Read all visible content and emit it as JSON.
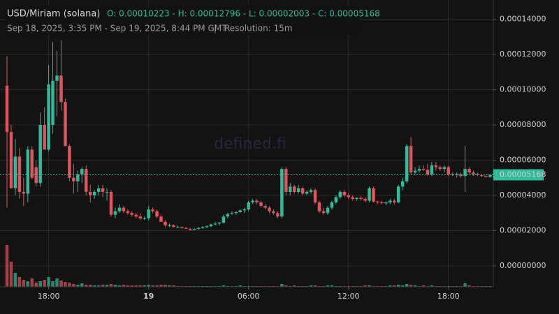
{
  "chart_data": {
    "type": "candlestick",
    "title": "USD/Miriam (solana)",
    "ohlc_text": "O: 0.00010223 - H: 0.00012796 - L: 0.00002003 - C: 0.00005168",
    "subtitle": "Sep 18, 2025, 3:35 PM - Sep 19, 2025, 8:44 PM GMT",
    "resolution": "Resolution: 15m",
    "watermark": "defined.fi",
    "up_color": "#2ebd9a",
    "down_color": "#e5525b",
    "grid": true,
    "xlim": [
      -1.68,
      116.78
    ],
    "xticks": [
      {
        "value": 10,
        "label": "18:00"
      },
      {
        "value": 34,
        "label": "19"
      },
      {
        "value": 58,
        "label": "06:00"
      },
      {
        "value": 82,
        "label": "12:00"
      },
      {
        "value": 106,
        "label": "18:00"
      }
    ],
    "ylim": [
      -1.188e-05,
      0.00015089
    ],
    "yticks": [
      {
        "value": 0.00014,
        "label": "0.00014000"
      },
      {
        "value": 0.00012,
        "label": "0.00012000"
      },
      {
        "value": 0.0001,
        "label": "0.00010000"
      },
      {
        "value": 8e-05,
        "label": "0.00008000"
      },
      {
        "value": 6e-05,
        "label": "0.00006000"
      },
      {
        "value": 4e-05,
        "label": "0.00004000"
      },
      {
        "value": 2e-05,
        "label": "0.00002000"
      },
      {
        "value": 0,
        "label": "0.00000000"
      }
    ],
    "open": [
      0.00010223,
      7.6e-05,
      4.4e-05,
      6.2e-05,
      4.2e-05,
      4.1e-05,
      6.6e-05,
      5.6e-05,
      4.7e-05,
      8e-05,
      6.6e-05,
      8e-05,
      0.000105,
      0.000108,
      9.3e-05,
      6.8e-05,
      5e-05,
      4.8e-05,
      5.2e-05,
      5.5e-05,
      4.2e-05,
      4e-05,
      4.2e-05,
      4.4e-05,
      4.2e-05,
      4.2e-05,
      2.9e-05,
      3.1e-05,
      3.3e-05,
      3.1e-05,
      3e-05,
      2.9e-05,
      2.8e-05,
      2.7e-05,
      2.7e-05,
      3.2e-05,
      3.1e-05,
      2.8e-05,
      2.5e-05,
      2.3e-05,
      2.3e-05,
      2.2e-05,
      2.2e-05,
      2.15e-05,
      2.1e-05,
      2.05e-05,
      2.1e-05,
      2.15e-05,
      2.2e-05,
      2.25e-05,
      2.35e-05,
      2.4e-05,
      2.45e-05,
      2.8e-05,
      2.95e-05,
      3e-05,
      3.05e-05,
      3.15e-05,
      3.2e-05,
      3.6e-05,
      3.7e-05,
      3.6e-05,
      3.4e-05,
      3.3e-05,
      3.1e-05,
      3e-05,
      2.8e-05,
      5.5e-05,
      4.2e-05,
      4.5e-05,
      4.2e-05,
      4.4e-05,
      4.1e-05,
      4.2e-05,
      4.3e-05,
      3.6e-05,
      3.1e-05,
      3e-05,
      3.3e-05,
      3.6e-05,
      3.9e-05,
      4.2e-05,
      4e-05,
      3.9e-05,
      3.8e-05,
      3.85e-05,
      3.8e-05,
      3.7e-05,
      4.4e-05,
      3.65e-05,
      3.6e-05,
      3.55e-05,
      3.6e-05,
      3.7e-05,
      3.6e-05,
      4.5e-05,
      4.8e-05,
      6.8e-05,
      5.3e-05,
      5.4e-05,
      5.5e-05,
      5.45e-05,
      5.2e-05,
      5.7e-05,
      5.6e-05,
      5.5e-05,
      5.6e-05,
      5.2e-05,
      5.15e-05,
      5.2e-05,
      5.1e-05,
      5.5e-05,
      5.3e-05,
      5.2e-05,
      5.15e-05,
      5.1e-05,
      5.05e-05
    ],
    "high": [
      0.000119,
      8e-05,
      7.2e-05,
      6.7e-05,
      5e-05,
      6.8e-05,
      6.8e-05,
      6e-05,
      8.7e-05,
      9e-05,
      0.000114,
      0.000127,
      0.000122,
      0.00012796,
      9.5e-05,
      6.9e-05,
      5.8e-05,
      5.4e-05,
      5.6e-05,
      5.7e-05,
      4.6e-05,
      4.3e-05,
      4.6e-05,
      4.6e-05,
      4.4e-05,
      4.3e-05,
      3.3e-05,
      3.5e-05,
      3.4e-05,
      3.2e-05,
      3.1e-05,
      3e-05,
      3e-05,
      2.8e-05,
      3.4e-05,
      3.3e-05,
      3.2e-05,
      2.9e-05,
      2.6e-05,
      2.4e-05,
      2.35e-05,
      2.3e-05,
      2.25e-05,
      2.2e-05,
      2.15e-05,
      2.15e-05,
      2.2e-05,
      2.25e-05,
      2.3e-05,
      2.4e-05,
      2.5e-05,
      2.5e-05,
      2.9e-05,
      3e-05,
      3.1e-05,
      3.1e-05,
      3.2e-05,
      3.3e-05,
      3.7e-05,
      3.8e-05,
      3.8e-05,
      3.7e-05,
      3.5e-05,
      3.4e-05,
      3.2e-05,
      3.1e-05,
      5.6e-05,
      5.6e-05,
      4.7e-05,
      4.6e-05,
      4.6e-05,
      4.5e-05,
      4.3e-05,
      4.4e-05,
      4.4e-05,
      3.7e-05,
      3.3e-05,
      3.4e-05,
      3.7e-05,
      4e-05,
      4.3e-05,
      4.3e-05,
      4.1e-05,
      4e-05,
      3.9e-05,
      3.95e-05,
      3.9e-05,
      4.5e-05,
      4.5e-05,
      3.7e-05,
      3.7e-05,
      3.65e-05,
      3.8e-05,
      3.8e-05,
      4.6e-05,
      5e-05,
      6.9e-05,
      7.3e-05,
      5.6e-05,
      5.7e-05,
      5.7e-05,
      5.8e-05,
      5.9e-05,
      5.9e-05,
      5.7e-05,
      5.7e-05,
      5.7e-05,
      5.3e-05,
      5.3e-05,
      5.3e-05,
      6.8e-05,
      5.6e-05,
      5.4e-05,
      5.3e-05,
      5.2e-05,
      5.15e-05,
      5.2e-05
    ],
    "low": [
      3.3e-05,
      4.4e-05,
      4e-05,
      3.8e-05,
      3.4e-05,
      3.6e-05,
      4.9e-05,
      4.5e-05,
      4.5e-05,
      6.6e-05,
      6.5e-05,
      7.5e-05,
      8.5e-05,
      8.8e-05,
      6.8e-05,
      4.8e-05,
      4.1e-05,
      4.2e-05,
      4.7e-05,
      4e-05,
      3.6e-05,
      3.8e-05,
      4e-05,
      3.9e-05,
      3.7e-05,
      2.8e-05,
      2.7e-05,
      3e-05,
      3e-05,
      2.9e-05,
      2.8e-05,
      2.7e-05,
      2.6e-05,
      2.6e-05,
      2.6e-05,
      3e-05,
      2.7e-05,
      2.5e-05,
      2.2e-05,
      2.2e-05,
      2.2e-05,
      2.15e-05,
      2.1e-05,
      2.1e-05,
      2.003e-05,
      2.05e-05,
      2.05e-05,
      2.1e-05,
      2.15e-05,
      2.2e-05,
      2.3e-05,
      2.3e-05,
      2.4e-05,
      2.7e-05,
      2.9e-05,
      2.9e-05,
      3e-05,
      3e-05,
      3.1e-05,
      3.5e-05,
      3.5e-05,
      3.3e-05,
      3.2e-05,
      3e-05,
      2.9e-05,
      2.7e-05,
      2.7e-05,
      4e-05,
      4e-05,
      4.1e-05,
      4.1e-05,
      4e-05,
      4e-05,
      4.1e-05,
      3.5e-05,
      3e-05,
      2.9e-05,
      2.9e-05,
      3.2e-05,
      3.5e-05,
      3.8e-05,
      3.9e-05,
      3.8e-05,
      3.7e-05,
      3.7e-05,
      3.7e-05,
      3.6e-05,
      3.6e-05,
      3.6e-05,
      3.5e-05,
      3.5e-05,
      3.45e-05,
      3.5e-05,
      3.5e-05,
      3.55e-05,
      4.3e-05,
      4.7e-05,
      5.2e-05,
      5.2e-05,
      5.3e-05,
      5.4e-05,
      5.1e-05,
      5.1e-05,
      5.4e-05,
      5.4e-05,
      5.3e-05,
      5.1e-05,
      5.1e-05,
      5e-05,
      5e-05,
      4.2e-05,
      5.2e-05,
      5.1e-05,
      5.1e-05,
      5.05e-05,
      5e-05,
      5e-05
    ],
    "close": [
      7.6e-05,
      4.4e-05,
      6.2e-05,
      4.2e-05,
      4.1e-05,
      6.6e-05,
      5e-05,
      4.7e-05,
      8e-05,
      6.6e-05,
      0.000103,
      0.000105,
      0.000108,
      9.3e-05,
      6.8e-05,
      5e-05,
      4.8e-05,
      5.2e-05,
      5.5e-05,
      4.2e-05,
      4e-05,
      4.2e-05,
      4.4e-05,
      4.2e-05,
      4.2e-05,
      2.9e-05,
      3.1e-05,
      3.3e-05,
      3.1e-05,
      3e-05,
      2.9e-05,
      2.8e-05,
      2.7e-05,
      2.7e-05,
      3.2e-05,
      3.1e-05,
      2.8e-05,
      2.5e-05,
      2.3e-05,
      2.3e-05,
      2.2e-05,
      2.2e-05,
      2.15e-05,
      2.1e-05,
      2.05e-05,
      2.1e-05,
      2.15e-05,
      2.2e-05,
      2.25e-05,
      2.35e-05,
      2.4e-05,
      2.45e-05,
      2.8e-05,
      2.95e-05,
      3e-05,
      3.05e-05,
      3.15e-05,
      3.2e-05,
      3.6e-05,
      3.7e-05,
      3.6e-05,
      3.4e-05,
      3.3e-05,
      3.1e-05,
      3e-05,
      2.8e-05,
      5.5e-05,
      4.2e-05,
      4.5e-05,
      4.2e-05,
      4.4e-05,
      4.1e-05,
      4.2e-05,
      4.3e-05,
      3.6e-05,
      3.1e-05,
      3e-05,
      3.3e-05,
      3.6e-05,
      3.9e-05,
      4.2e-05,
      4e-05,
      3.9e-05,
      3.8e-05,
      3.85e-05,
      3.8e-05,
      3.7e-05,
      4.4e-05,
      3.65e-05,
      3.6e-05,
      3.55e-05,
      3.6e-05,
      3.7e-05,
      3.6e-05,
      4.5e-05,
      4.8e-05,
      6.8e-05,
      5.3e-05,
      5.4e-05,
      5.5e-05,
      5.45e-05,
      5.2e-05,
      5.7e-05,
      5.6e-05,
      5.5e-05,
      5.6e-05,
      5.2e-05,
      5.15e-05,
      5.2e-05,
      5.1e-05,
      5.5e-05,
      5.3e-05,
      5.2e-05,
      5.15e-05,
      5.1e-05,
      5.05e-05,
      5.168e-05
    ],
    "volume": [
      60,
      36,
      20,
      14,
      10,
      8,
      12,
      6,
      8,
      10,
      14,
      8,
      12,
      9,
      7,
      6,
      4,
      3,
      5,
      3,
      3,
      2,
      2,
      3,
      3,
      4,
      3,
      2,
      3,
      2,
      2,
      2,
      2,
      2,
      3,
      2,
      2,
      3,
      3,
      2,
      2,
      1,
      1,
      1,
      1,
      1,
      1,
      1,
      1,
      1,
      1,
      1,
      2,
      1,
      1,
      1,
      2,
      1,
      1,
      1,
      1,
      1,
      1,
      1,
      1,
      1,
      4,
      2,
      1,
      2,
      1,
      1,
      1,
      2,
      2,
      1,
      1,
      2,
      2,
      1,
      1,
      1,
      1,
      1,
      1,
      1,
      2,
      2,
      1,
      1,
      1,
      1,
      2,
      2,
      3,
      2,
      4,
      3,
      2,
      1,
      2,
      1,
      2,
      1,
      1,
      1,
      1,
      1,
      1,
      1,
      5,
      2,
      1,
      1,
      1,
      1,
      1
    ]
  }
}
